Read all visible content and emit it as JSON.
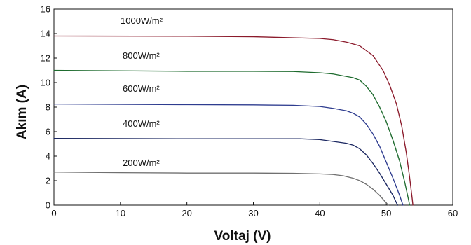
{
  "chart_data": {
    "type": "line",
    "title": "",
    "xlabel": "Voltaj (V)",
    "ylabel": "Akım (A)",
    "xlim": [
      0,
      60
    ],
    "ylim": [
      0,
      16
    ],
    "x_ticks": [
      0,
      10,
      20,
      30,
      40,
      50,
      60
    ],
    "y_ticks": [
      0,
      2,
      4,
      6,
      8,
      10,
      12,
      14,
      16
    ],
    "grid": false,
    "legend": "none",
    "series": [
      {
        "label": "1000W/m²",
        "color": "#8B1A2B",
        "points": [
          [
            0,
            13.8
          ],
          [
            20,
            13.78
          ],
          [
            30,
            13.74
          ],
          [
            40,
            13.6
          ],
          [
            42,
            13.5
          ],
          [
            44,
            13.3
          ],
          [
            46,
            13.0
          ],
          [
            48,
            12.2
          ],
          [
            49.5,
            11.0
          ],
          [
            50.5,
            9.8
          ],
          [
            51.5,
            8.3
          ],
          [
            52.3,
            6.5
          ],
          [
            53,
            4.3
          ],
          [
            53.5,
            2.3
          ],
          [
            53.9,
            0.5
          ],
          [
            54.0,
            0
          ]
        ]
      },
      {
        "label": "800W/m²",
        "color": "#1E6B2E",
        "points": [
          [
            0,
            11.0
          ],
          [
            20,
            10.92
          ],
          [
            30,
            10.92
          ],
          [
            36,
            10.9
          ],
          [
            40,
            10.8
          ],
          [
            42,
            10.7
          ],
          [
            44,
            10.5
          ],
          [
            45,
            10.4
          ],
          [
            46,
            10.2
          ],
          [
            47,
            9.7
          ],
          [
            48,
            9.0
          ],
          [
            49,
            8.0
          ],
          [
            50,
            6.8
          ],
          [
            51,
            5.3
          ],
          [
            52,
            3.6
          ],
          [
            52.8,
            1.8
          ],
          [
            53.4,
            0.3
          ],
          [
            53.5,
            0
          ]
        ]
      },
      {
        "label": "600W/m²",
        "color": "#2E3C8F",
        "points": [
          [
            0,
            8.25
          ],
          [
            20,
            8.2
          ],
          [
            30,
            8.18
          ],
          [
            36,
            8.15
          ],
          [
            40,
            8.05
          ],
          [
            42,
            7.9
          ],
          [
            44,
            7.7
          ],
          [
            45,
            7.5
          ],
          [
            46,
            7.2
          ],
          [
            47,
            6.6
          ],
          [
            48,
            5.8
          ],
          [
            49,
            4.8
          ],
          [
            50,
            3.5
          ],
          [
            51,
            2.2
          ],
          [
            52,
            0.8
          ],
          [
            52.5,
            0
          ]
        ]
      },
      {
        "label": "400W/m²",
        "color": "#1A2660",
        "points": [
          [
            0,
            5.45
          ],
          [
            20,
            5.42
          ],
          [
            30,
            5.42
          ],
          [
            37,
            5.42
          ],
          [
            40,
            5.35
          ],
          [
            42,
            5.2
          ],
          [
            44,
            5.05
          ],
          [
            45,
            4.9
          ],
          [
            46,
            4.6
          ],
          [
            47,
            4.1
          ],
          [
            48,
            3.4
          ],
          [
            49,
            2.6
          ],
          [
            50,
            1.7
          ],
          [
            51,
            0.8
          ],
          [
            51.6,
            0.1
          ],
          [
            51.7,
            0
          ]
        ]
      },
      {
        "label": "200W/m²",
        "color": "#707070",
        "points": [
          [
            0,
            2.7
          ],
          [
            10,
            2.65
          ],
          [
            20,
            2.62
          ],
          [
            30,
            2.62
          ],
          [
            36,
            2.6
          ],
          [
            40,
            2.55
          ],
          [
            42,
            2.5
          ],
          [
            43.5,
            2.4
          ],
          [
            45,
            2.2
          ],
          [
            46,
            2.0
          ],
          [
            47,
            1.7
          ],
          [
            48,
            1.3
          ],
          [
            49,
            0.8
          ],
          [
            49.8,
            0.3
          ],
          [
            50.3,
            0
          ]
        ]
      }
    ]
  }
}
